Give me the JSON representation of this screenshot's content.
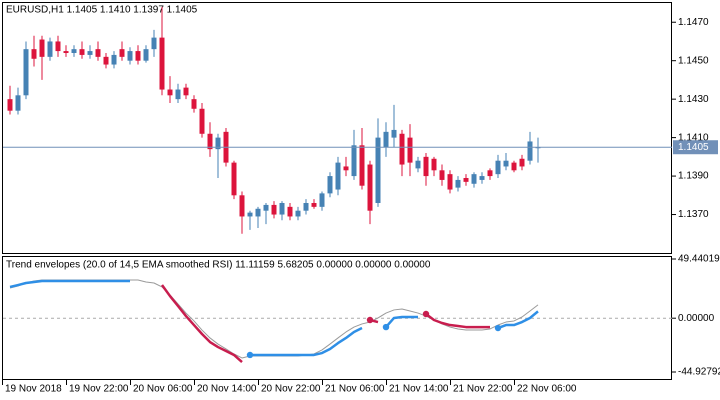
{
  "chart_data": [
    {
      "type": "candlestick",
      "title": "EURUSD,H1  1.1405 1.1410 1.1397 1.1405",
      "bull_color": "#4682b4",
      "bear_color": "#dc143c",
      "open": [
        1.143,
        1.1424,
        1.1432,
        1.1456,
        1.1461,
        1.1452,
        1.146,
        1.1455,
        1.1454,
        1.1456,
        1.1453,
        1.1456,
        1.1452,
        1.1448,
        1.1456,
        1.145,
        1.1455,
        1.145,
        1.1456,
        1.1462,
        1.1435,
        1.143,
        1.1436,
        1.143,
        1.1425,
        1.1412,
        1.1404,
        1.1413,
        1.1397,
        1.138,
        1.1369,
        1.1369,
        1.1372,
        1.1375,
        1.137,
        1.1374,
        1.1369,
        1.1372,
        1.1376,
        1.1374,
        1.1381,
        1.1383,
        1.1395,
        1.139,
        1.1406,
        1.1396,
        1.1376,
        1.1405,
        1.141,
        1.1412,
        1.141,
        1.1394,
        1.14,
        1.1399,
        1.1393,
        1.1391,
        1.1384,
        1.1389,
        1.1386,
        1.1388,
        1.1393,
        1.1391,
        1.1395,
        1.1397,
        1.1399,
        1.1398,
        1.1405
      ],
      "high": [
        1.1437,
        1.1436,
        1.146,
        1.1463,
        1.1463,
        1.1462,
        1.1463,
        1.1458,
        1.1458,
        1.146,
        1.1458,
        1.146,
        1.1454,
        1.1455,
        1.146,
        1.1457,
        1.1458,
        1.1458,
        1.1466,
        1.1478,
        1.1442,
        1.1438,
        1.1438,
        1.1432,
        1.1428,
        1.1418,
        1.1412,
        1.1415,
        1.1398,
        1.1382,
        1.1372,
        1.1374,
        1.1376,
        1.1377,
        1.1377,
        1.1376,
        1.1374,
        1.1378,
        1.1378,
        1.1382,
        1.1392,
        1.14,
        1.14,
        1.1414,
        1.1415,
        1.1398,
        1.142,
        1.1418,
        1.1427,
        1.1414,
        1.1417,
        1.14,
        1.1402,
        1.14,
        1.1396,
        1.1393,
        1.139,
        1.1391,
        1.1392,
        1.1392,
        1.1394,
        1.1401,
        1.1402,
        1.1398,
        1.1401,
        1.1413,
        1.141
      ],
      "low": [
        1.1422,
        1.1422,
        1.143,
        1.1447,
        1.144,
        1.145,
        1.1452,
        1.1452,
        1.1452,
        1.1451,
        1.1451,
        1.145,
        1.1446,
        1.1446,
        1.145,
        1.1448,
        1.1448,
        1.1449,
        1.1452,
        1.1432,
        1.1428,
        1.1428,
        1.143,
        1.1423,
        1.141,
        1.14,
        1.1389,
        1.1395,
        1.1378,
        1.136,
        1.1362,
        1.1363,
        1.1365,
        1.1368,
        1.1367,
        1.1367,
        1.1367,
        1.137,
        1.1373,
        1.1372,
        1.1379,
        1.138,
        1.139,
        1.1388,
        1.1383,
        1.1365,
        1.1374,
        1.14,
        1.1405,
        1.139,
        1.139,
        1.1392,
        1.1385,
        1.139,
        1.1385,
        1.1381,
        1.1382,
        1.1385,
        1.1384,
        1.1386,
        1.1388,
        1.1389,
        1.1393,
        1.1392,
        1.1393,
        1.1396,
        1.1397
      ],
      "close": [
        1.1424,
        1.1432,
        1.1456,
        1.1451,
        1.1452,
        1.146,
        1.1455,
        1.1454,
        1.1456,
        1.1453,
        1.1455,
        1.1452,
        1.1448,
        1.1453,
        1.1452,
        1.1455,
        1.145,
        1.1456,
        1.1462,
        1.1435,
        1.1432,
        1.1435,
        1.1432,
        1.1425,
        1.1412,
        1.1404,
        1.141,
        1.1397,
        1.138,
        1.1369,
        1.1371,
        1.1373,
        1.1375,
        1.137,
        1.1376,
        1.1369,
        1.1372,
        1.1376,
        1.1374,
        1.1381,
        1.139,
        1.1397,
        1.1393,
        1.1406,
        1.1385,
        1.1372,
        1.141,
        1.1413,
        1.1414,
        1.1396,
        1.1397,
        1.1398,
        1.139,
        1.1393,
        1.1388,
        1.1383,
        1.1388,
        1.1387,
        1.1391,
        1.139,
        1.139,
        1.1398,
        1.1398,
        1.1393,
        1.1395,
        1.1408,
        1.1405
      ],
      "ylim": [
        1.135,
        1.148
      ],
      "yticks": [
        {
          "value": 1.147,
          "label": "1.1470"
        },
        {
          "value": 1.145,
          "label": "1.1450"
        },
        {
          "value": 1.143,
          "label": "1.1430"
        },
        {
          "value": 1.141,
          "label": "1.1410"
        },
        {
          "value": 1.139,
          "label": "1.1390"
        },
        {
          "value": 1.137,
          "label": "1.1370"
        }
      ],
      "current_price": 1.1405,
      "current_price_color": "#7190b8"
    },
    {
      "type": "line",
      "title": "Trend envelopes (20.0 of 14,5 EMA smoothed RSI) 11.11159 5.68205 0.00000 0.00000 0.00000",
      "ylim": [
        -44.92792,
        49.44019
      ],
      "yticks": [
        49.44019,
        {
          "value": 0,
          "label": "0.00000"
        },
        -44.92792
      ],
      "zero_line": true,
      "series": [
        {
          "color": "#9a9a9a",
          "width": 1,
          "values": [
            25.2,
            26.9,
            29.4,
            31.1,
            31.9,
            31.9,
            31.9,
            31.9,
            31.9,
            31.9,
            31.9,
            31.9,
            31.9,
            31.9,
            31.9,
            31.9,
            31.9,
            30.2,
            29.4,
            26.1,
            19.4,
            11.9,
            4.3,
            -2.3,
            -9.9,
            -16.5,
            -21.6,
            -25.7,
            -29.9,
            -33.2,
            -31.6,
            -31.6,
            -31.6,
            -31.6,
            -31.6,
            -31.6,
            -31.6,
            -30.7,
            -29.9,
            -26.5,
            -21.6,
            -16.5,
            -11.5,
            -7.4,
            -4.8,
            -3.2,
            0.2,
            4.3,
            6.9,
            7.7,
            6.0,
            4.3,
            1.8,
            -1.5,
            -4.8,
            -7.4,
            -9.0,
            -9.9,
            -9.9,
            -9.9,
            -9.0,
            -5.7,
            -3.2,
            -2.3,
            1.0,
            6.0,
            11.11159
          ]
        },
        {
          "color": "#2f8fe6",
          "width": 2.5,
          "dots": [
            30,
            47,
            61
          ],
          "values": [
            26.1,
            27.7,
            29.4,
            30.2,
            31.1,
            31.1,
            31.1,
            31.1,
            31.1,
            31.1,
            31.1,
            31.1,
            31.1,
            31.1,
            31.1,
            31.1,
            null,
            null,
            null,
            null,
            null,
            null,
            null,
            null,
            null,
            null,
            null,
            null,
            null,
            null,
            -30.7,
            -30.7,
            -30.7,
            -30.7,
            -30.7,
            -30.7,
            -30.7,
            -30.7,
            -30.7,
            -29.1,
            -25.7,
            -20.8,
            -16.5,
            -11.5,
            -8.2,
            null,
            null,
            -7.4,
            0.2,
            1.0,
            1.0,
            1.0,
            null,
            null,
            null,
            null,
            null,
            null,
            null,
            null,
            null,
            -8.2,
            -5.7,
            -5.7,
            -3.2,
            0.2,
            5.68205
          ]
        },
        {
          "color": "#c81d4e",
          "width": 2.5,
          "dots": [
            45,
            52
          ],
          "values": [
            null,
            null,
            null,
            null,
            null,
            null,
            null,
            null,
            null,
            null,
            null,
            null,
            null,
            null,
            null,
            null,
            null,
            null,
            null,
            27.7,
            18.5,
            10.2,
            1.8,
            -5.7,
            -13.2,
            -19.9,
            -24.1,
            -27.4,
            -30.7,
            -36.6,
            null,
            null,
            null,
            null,
            null,
            null,
            null,
            null,
            null,
            null,
            null,
            null,
            null,
            null,
            null,
            -1.5,
            -3.2,
            null,
            null,
            null,
            null,
            null,
            3.5,
            -1.5,
            -4.0,
            -5.7,
            -6.5,
            -7.4,
            -7.4,
            -7.4,
            -7.4,
            null,
            null,
            null,
            null,
            null,
            null
          ]
        }
      ]
    },
    {
      "type": "time_axis",
      "labels": [
        "19 Nov 2018",
        "19 Nov 22:00",
        "20 Nov 06:00",
        "20 Nov 14:00",
        "20 Nov 22:00",
        "21 Nov 06:00",
        "21 Nov 14:00",
        "21 Nov 22:00",
        "22 Nov 06:00"
      ]
    }
  ]
}
